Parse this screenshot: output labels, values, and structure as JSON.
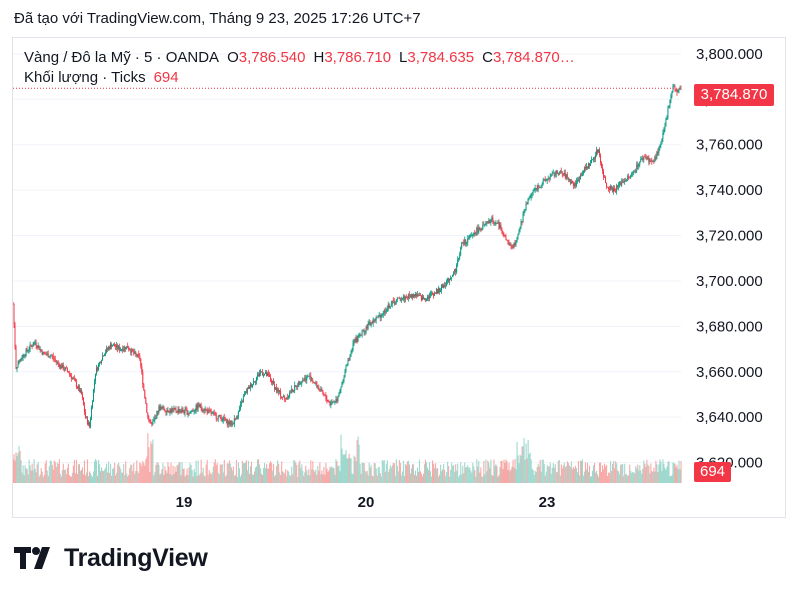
{
  "header": {
    "created_text": "Đã tạo với TradingView.com, Tháng 9 23, 2025 17:26 UTC+7"
  },
  "legend": {
    "symbol": "Vàng / Đô la Mỹ · 5 · OANDA",
    "open_label": "O",
    "open": "3,786.540",
    "high_label": "H",
    "high": "3,786.710",
    "low_label": "L",
    "low": "3,784.635",
    "close_label": "C",
    "close": "3,784.870…",
    "volume_label": "Khối lượng · Ticks",
    "volume": "694"
  },
  "price_tag": "3,784.870",
  "volume_tag": "694",
  "brand": {
    "name": "TradingView"
  },
  "colors": {
    "up": "#089981",
    "down": "#f23645",
    "up_volume": "#9fd8cd",
    "down_volume": "#f7a9a7",
    "grid": "#f0f3fa"
  },
  "chart_data": {
    "type": "candlestick",
    "symbol": "XAUUSD",
    "timeframe": "5",
    "y_ticks": [
      "3,800.000",
      "3,780.000",
      "3,760.000",
      "3,740.000",
      "3,720.000",
      "3,700.000",
      "3,680.000",
      "3,660.000",
      "3,640.000",
      "3,620.000"
    ],
    "y_tick_values": [
      3800,
      3780,
      3760,
      3740,
      3720,
      3700,
      3680,
      3660,
      3640,
      3620
    ],
    "x_ticks": [
      "19",
      "20",
      "23"
    ],
    "ylim": [
      3611,
      3807
    ],
    "last_price": 3784.87,
    "close_path": [
      [
        0,
        3690
      ],
      [
        3,
        3662
      ],
      [
        8,
        3666
      ],
      [
        15,
        3670
      ],
      [
        22,
        3673
      ],
      [
        30,
        3668
      ],
      [
        38,
        3667
      ],
      [
        46,
        3663
      ],
      [
        55,
        3660
      ],
      [
        62,
        3655
      ],
      [
        68,
        3650
      ],
      [
        72,
        3640
      ],
      [
        76,
        3636
      ],
      [
        82,
        3660
      ],
      [
        90,
        3668
      ],
      [
        98,
        3672
      ],
      [
        106,
        3670
      ],
      [
        114,
        3671
      ],
      [
        120,
        3668
      ],
      [
        126,
        3666
      ],
      [
        130,
        3652
      ],
      [
        134,
        3640
      ],
      [
        138,
        3636
      ],
      [
        145,
        3644
      ],
      [
        155,
        3643
      ],
      [
        165,
        3643
      ],
      [
        175,
        3642
      ],
      [
        185,
        3645
      ],
      [
        195,
        3642
      ],
      [
        205,
        3640
      ],
      [
        212,
        3638
      ],
      [
        218,
        3637
      ],
      [
        224,
        3642
      ],
      [
        230,
        3650
      ],
      [
        238,
        3655
      ],
      [
        246,
        3660
      ],
      [
        254,
        3658
      ],
      [
        262,
        3652
      ],
      [
        270,
        3648
      ],
      [
        278,
        3652
      ],
      [
        286,
        3656
      ],
      [
        294,
        3658
      ],
      [
        300,
        3655
      ],
      [
        308,
        3650
      ],
      [
        315,
        3646
      ],
      [
        322,
        3648
      ],
      [
        330,
        3660
      ],
      [
        338,
        3672
      ],
      [
        345,
        3676
      ],
      [
        352,
        3680
      ],
      [
        360,
        3683
      ],
      [
        368,
        3686
      ],
      [
        376,
        3690
      ],
      [
        384,
        3692
      ],
      [
        392,
        3693
      ],
      [
        400,
        3694
      ],
      [
        408,
        3692
      ],
      [
        416,
        3694
      ],
      [
        424,
        3696
      ],
      [
        432,
        3700
      ],
      [
        440,
        3705
      ],
      [
        446,
        3716
      ],
      [
        452,
        3718
      ],
      [
        460,
        3722
      ],
      [
        468,
        3724
      ],
      [
        476,
        3727
      ],
      [
        484,
        3724
      ],
      [
        490,
        3718
      ],
      [
        496,
        3714
      ],
      [
        502,
        3720
      ],
      [
        510,
        3734
      ],
      [
        518,
        3740
      ],
      [
        526,
        3743
      ],
      [
        534,
        3746
      ],
      [
        542,
        3748
      ],
      [
        550,
        3746
      ],
      [
        558,
        3742
      ],
      [
        566,
        3748
      ],
      [
        574,
        3752
      ],
      [
        582,
        3758
      ],
      [
        586,
        3748
      ],
      [
        590,
        3742
      ],
      [
        598,
        3740
      ],
      [
        606,
        3744
      ],
      [
        614,
        3746
      ],
      [
        622,
        3752
      ],
      [
        628,
        3755
      ],
      [
        636,
        3752
      ],
      [
        644,
        3760
      ],
      [
        648,
        3768
      ],
      [
        652,
        3778
      ],
      [
        656,
        3786
      ],
      [
        660,
        3783
      ],
      [
        664,
        3785
      ]
    ]
  }
}
